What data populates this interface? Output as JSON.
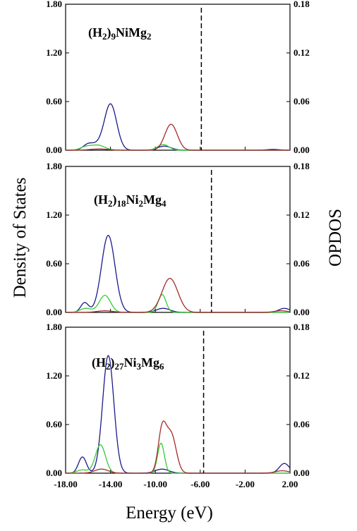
{
  "y_axis_left_title": "Density of States",
  "y_axis_right_title": "OPDOS",
  "x_axis_title": "Energy (eV)",
  "colors": {
    "red": "#a52a2a",
    "green": "#33cc33",
    "blue": "#1a1a8c",
    "frame": "#000000"
  },
  "chart_data": [
    {
      "type": "line",
      "formula": [
        {
          "t": "(H"
        },
        {
          "t": "2",
          "sub": true
        },
        {
          "t": ")"
        },
        {
          "t": "9",
          "sub": true
        },
        {
          "t": "NiMg"
        },
        {
          "t": "2",
          "sub": true
        }
      ],
      "xlim": [
        -18,
        2
      ],
      "ylim": [
        0,
        1.8
      ],
      "ylim_right": [
        0,
        0.18
      ],
      "x_ticks": [
        "-18.00",
        "-14.00",
        "-10.00",
        "-6.00",
        "-2.00",
        "2.00"
      ],
      "y_ticks": [
        "0.00",
        "0.60",
        "1.20",
        "1.80"
      ],
      "y_ticks_right": [
        "0.00",
        "0.06",
        "0.12",
        "0.18"
      ],
      "fermi_level": -5.9,
      "series": [
        {
          "color": "blue",
          "peaks": [
            [
              -16.0,
              0.07,
              0.45
            ],
            [
              -15.2,
              0.05,
              0.5
            ],
            [
              -14.0,
              0.57,
              0.55
            ],
            [
              -9.2,
              0.05,
              0.6
            ],
            [
              0.5,
              0.01,
              0.5
            ]
          ]
        },
        {
          "color": "green",
          "peaks": [
            [
              -16.2,
              0.04,
              0.5
            ],
            [
              -15.1,
              0.06,
              0.6
            ],
            [
              -9.3,
              0.07,
              0.5
            ]
          ]
        },
        {
          "color": "red",
          "peaks": [
            [
              -15.0,
              0.015,
              0.8
            ],
            [
              -8.6,
              0.32,
              0.55
            ]
          ]
        }
      ]
    },
    {
      "type": "line",
      "formula": [
        {
          "t": "(H"
        },
        {
          "t": "2",
          "sub": true
        },
        {
          "t": ")"
        },
        {
          "t": "18",
          "sub": true
        },
        {
          "t": "Ni"
        },
        {
          "t": "2",
          "sub": true
        },
        {
          "t": "Mg"
        },
        {
          "t": "4",
          "sub": true
        }
      ],
      "xlim": [
        -18,
        2
      ],
      "ylim": [
        0,
        1.8
      ],
      "ylim_right": [
        0,
        0.18
      ],
      "x_ticks": [
        "-18.00",
        "-14.00",
        "-10.00",
        "-6.00",
        "-2.00",
        "2.00"
      ],
      "y_ticks": [
        "0.00",
        "0.60",
        "1.20",
        "1.80"
      ],
      "y_ticks_right": [
        "0.00",
        "0.06",
        "0.12",
        "0.18"
      ],
      "fermi_level": -5.0,
      "series": [
        {
          "color": "blue",
          "peaks": [
            [
              -16.3,
              0.12,
              0.35
            ],
            [
              -14.2,
              0.95,
              0.6
            ],
            [
              -9.3,
              0.05,
              0.6
            ],
            [
              1.5,
              0.05,
              0.5
            ]
          ]
        },
        {
          "color": "green",
          "peaks": [
            [
              -16.2,
              0.05,
              0.5
            ],
            [
              -14.5,
              0.21,
              0.5
            ],
            [
              -9.4,
              0.22,
              0.35
            ]
          ]
        },
        {
          "color": "red",
          "peaks": [
            [
              -14.5,
              0.02,
              0.7
            ],
            [
              -8.7,
              0.42,
              0.7
            ],
            [
              1.2,
              0.02,
              0.6
            ]
          ]
        }
      ]
    },
    {
      "type": "line",
      "formula": [
        {
          "t": "(H"
        },
        {
          "t": "2",
          "sub": true
        },
        {
          "t": ")"
        },
        {
          "t": "27",
          "sub": true
        },
        {
          "t": "Ni"
        },
        {
          "t": "3",
          "sub": true
        },
        {
          "t": "Mg"
        },
        {
          "t": "6",
          "sub": true
        }
      ],
      "xlim": [
        -18,
        2
      ],
      "ylim": [
        0,
        1.8
      ],
      "ylim_right": [
        0,
        0.18
      ],
      "x_ticks": [
        "-18.00",
        "-14.00",
        "-10.00",
        "-6.00",
        "-2.00",
        "2.00"
      ],
      "y_ticks": [
        "0.00",
        "0.60",
        "1.20",
        "1.80"
      ],
      "y_ticks_right": [
        "0.00",
        "0.06",
        "0.12",
        "0.18"
      ],
      "fermi_level": -5.7,
      "series": [
        {
          "color": "blue",
          "peaks": [
            [
              -16.5,
              0.2,
              0.35
            ],
            [
              -14.2,
              1.45,
              0.5
            ],
            [
              -9.4,
              0.05,
              0.6
            ],
            [
              1.5,
              0.12,
              0.45
            ]
          ]
        },
        {
          "color": "green",
          "peaks": [
            [
              -16.5,
              0.04,
              0.5
            ],
            [
              -14.9,
              0.35,
              0.45
            ],
            [
              -9.5,
              0.37,
              0.3
            ]
          ]
        },
        {
          "color": "red",
          "peaks": [
            [
              -14.8,
              0.05,
              0.6
            ],
            [
              -9.4,
              0.52,
              0.35
            ],
            [
              -8.6,
              0.48,
              0.45
            ],
            [
              1.3,
              0.03,
              0.6
            ]
          ]
        }
      ]
    }
  ]
}
